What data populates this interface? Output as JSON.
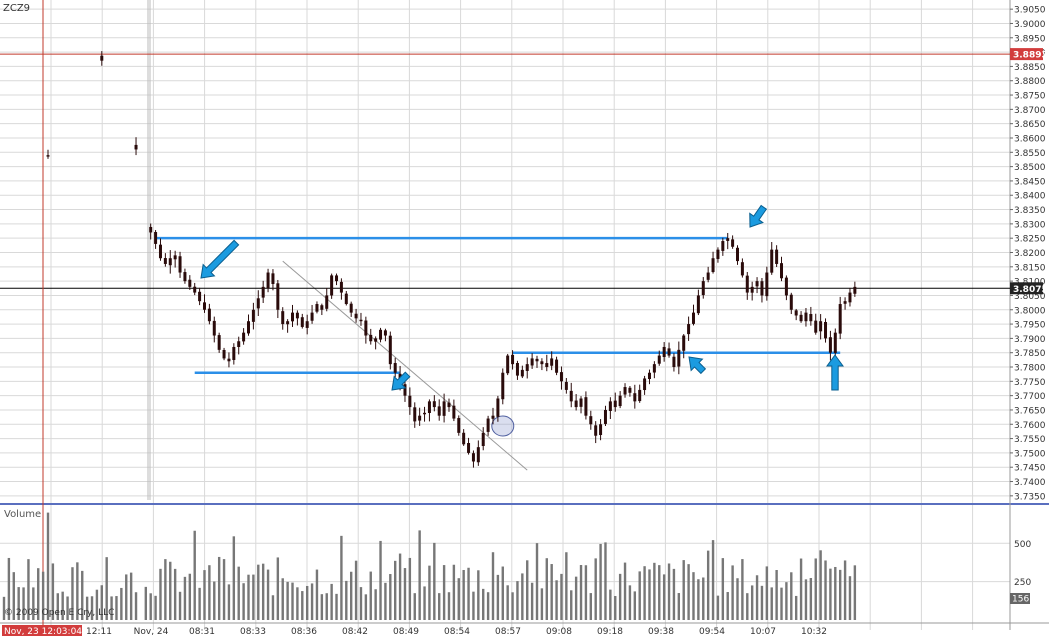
{
  "symbol": "ZCZ9",
  "volume_label": "Volume",
  "copyright": "© 2009 Open E Cry, LLC",
  "crosshair_time": "Nov, 23 12:03:04",
  "colors": {
    "grid": "#d9d9d9",
    "candle": "#2a0b0b",
    "level_line": "#2b8fe8",
    "arrow": "#1b9be0",
    "red_line": "#c0392b",
    "panel_divider": "#5a6fbf",
    "tag_red": "#d23c3c",
    "tag_gray": "#666666"
  },
  "chart_data": {
    "type": "candlestick",
    "title": "ZCZ9",
    "ylim": [
      3.7325,
      3.9075
    ],
    "yticks": [
      "3.9050",
      "3.9000",
      "3.8950",
      "3.8900",
      "3.8850",
      "3.8800",
      "3.8750",
      "3.8700",
      "3.8650",
      "3.8600",
      "3.8550",
      "3.8500",
      "3.8450",
      "3.8400",
      "3.8350",
      "3.8300",
      "3.8250",
      "3.8200",
      "3.8150",
      "3.8100",
      "3.8050",
      "3.8000",
      "3.7950",
      "3.7900",
      "3.7850",
      "3.7800",
      "3.7750",
      "3.7700",
      "3.7650",
      "3.7600",
      "3.7550",
      "3.7500",
      "3.7450",
      "3.7400",
      "3.7350"
    ],
    "xticks": [
      "12:11",
      "Nov, 24",
      "08:31",
      "08:33",
      "08:36",
      "08:42",
      "08:49",
      "08:54",
      "08:57",
      "09:08",
      "09:18",
      "09:38",
      "09:54",
      "10:07",
      "10:32"
    ],
    "current_price": "3.8075",
    "marked_price": "3.8893",
    "close_path": [
      [
        0,
        3.868
      ],
      [
        3,
        3.862
      ],
      [
        6,
        3.858
      ],
      [
        8,
        3.854
      ],
      [
        9,
        3.8535
      ],
      [
        11,
        3.862
      ],
      [
        14,
        3.874
      ],
      [
        17,
        3.884
      ],
      [
        19,
        3.889
      ],
      [
        20,
        3.887
      ],
      [
        22,
        3.876
      ],
      [
        24,
        3.868
      ],
      [
        26,
        3.858
      ],
      [
        27,
        3.856
      ],
      [
        29,
        3.829
      ],
      [
        30,
        3.827
      ],
      [
        31,
        3.823
      ],
      [
        32,
        3.818
      ],
      [
        33,
        3.816
      ],
      [
        34,
        3.818
      ],
      [
        35,
        3.819
      ],
      [
        36,
        3.813
      ],
      [
        37,
        3.81
      ],
      [
        38,
        3.808
      ],
      [
        39,
        3.806
      ],
      [
        40,
        3.803
      ],
      [
        41,
        3.8
      ],
      [
        42,
        3.796
      ],
      [
        43,
        3.791
      ],
      [
        44,
        3.786
      ],
      [
        45,
        3.783
      ],
      [
        46,
        3.782
      ],
      [
        47,
        3.787
      ],
      [
        48,
        3.789
      ],
      [
        49,
        3.792
      ],
      [
        50,
        3.796
      ],
      [
        51,
        3.8
      ],
      [
        52,
        3.804
      ],
      [
        53,
        3.808
      ],
      [
        54,
        3.813
      ],
      [
        55,
        3.809
      ],
      [
        56,
        3.8
      ],
      [
        57,
        3.795
      ],
      [
        58,
        3.796
      ],
      [
        59,
        3.799
      ],
      [
        60,
        3.797
      ],
      [
        61,
        3.794
      ],
      [
        62,
        3.796
      ],
      [
        63,
        3.799
      ],
      [
        64,
        3.802
      ],
      [
        65,
        3.8
      ],
      [
        66,
        3.805
      ],
      [
        67,
        3.812
      ],
      [
        68,
        3.81
      ],
      [
        69,
        3.806
      ],
      [
        70,
        3.802
      ],
      [
        71,
        3.799
      ],
      [
        72,
        3.797
      ],
      [
        73,
        3.796
      ],
      [
        74,
        3.791
      ],
      [
        75,
        3.789
      ],
      [
        76,
        3.79
      ],
      [
        77,
        3.793
      ],
      [
        78,
        3.791
      ],
      [
        79,
        3.781
      ],
      [
        80,
        3.778
      ],
      [
        81,
        3.774
      ],
      [
        82,
        3.77
      ],
      [
        83,
        3.766
      ],
      [
        84,
        3.761
      ],
      [
        85,
        3.763
      ],
      [
        86,
        3.764
      ],
      [
        87,
        3.768
      ],
      [
        88,
        3.766
      ],
      [
        89,
        3.763
      ],
      [
        90,
        3.768
      ],
      [
        91,
        3.766
      ],
      [
        92,
        3.762
      ],
      [
        93,
        3.757
      ],
      [
        94,
        3.753
      ],
      [
        95,
        3.75
      ],
      [
        96,
        3.747
      ],
      [
        97,
        3.752
      ],
      [
        98,
        3.757
      ],
      [
        99,
        3.762
      ],
      [
        100,
        3.763
      ],
      [
        101,
        3.769
      ],
      [
        102,
        3.778
      ],
      [
        103,
        3.784
      ],
      [
        104,
        3.781
      ],
      [
        105,
        3.777
      ],
      [
        106,
        3.779
      ],
      [
        107,
        3.781
      ],
      [
        108,
        3.783
      ],
      [
        109,
        3.782
      ],
      [
        110,
        3.781
      ],
      [
        111,
        3.78
      ],
      [
        112,
        3.783
      ],
      [
        113,
        3.778
      ],
      [
        114,
        3.775
      ],
      [
        115,
        3.772
      ],
      [
        116,
        3.768
      ],
      [
        117,
        3.766
      ],
      [
        118,
        3.769
      ],
      [
        119,
        3.763
      ],
      [
        120,
        3.76
      ],
      [
        121,
        3.756
      ],
      [
        122,
        3.76
      ],
      [
        123,
        3.765
      ],
      [
        124,
        3.768
      ],
      [
        125,
        3.766
      ],
      [
        126,
        3.77
      ],
      [
        127,
        3.773
      ],
      [
        128,
        3.771
      ],
      [
        129,
        3.768
      ],
      [
        130,
        3.772
      ],
      [
        131,
        3.776
      ],
      [
        132,
        3.778
      ],
      [
        133,
        3.781
      ],
      [
        134,
        3.784
      ],
      [
        135,
        3.787
      ],
      [
        136,
        3.784
      ],
      [
        137,
        3.78
      ],
      [
        138,
        3.786
      ],
      [
        139,
        3.791
      ],
      [
        140,
        3.795
      ],
      [
        141,
        3.799
      ],
      [
        142,
        3.805
      ],
      [
        143,
        3.81
      ],
      [
        144,
        3.813
      ],
      [
        145,
        3.818
      ],
      [
        146,
        3.821
      ],
      [
        147,
        3.824
      ],
      [
        148,
        3.825
      ],
      [
        149,
        3.822
      ],
      [
        150,
        3.817
      ],
      [
        151,
        3.812
      ],
      [
        152,
        3.806
      ],
      [
        153,
        3.808
      ],
      [
        154,
        3.81
      ],
      [
        155,
        3.805
      ],
      [
        156,
        3.813
      ],
      [
        157,
        3.821
      ],
      [
        158,
        3.816
      ],
      [
        159,
        3.811
      ],
      [
        160,
        3.805
      ],
      [
        161,
        3.8
      ],
      [
        162,
        3.798
      ],
      [
        163,
        3.796
      ],
      [
        164,
        3.799
      ],
      [
        165,
        3.796
      ],
      [
        166,
        3.792
      ],
      [
        167,
        3.796
      ],
      [
        168,
        3.79
      ],
      [
        169,
        3.785
      ],
      [
        170,
        3.792
      ],
      [
        171,
        3.802
      ],
      [
        172,
        3.803
      ],
      [
        173,
        3.806
      ],
      [
        174,
        3.808
      ]
    ],
    "levels": [
      {
        "price": 3.825,
        "from": 31,
        "to": 148
      },
      {
        "price": 3.778,
        "from": 39,
        "to": 81
      },
      {
        "price": 3.785,
        "from": 104,
        "to": 171
      }
    ],
    "trendline": [
      [
        57,
        3.817
      ],
      [
        107,
        3.744
      ]
    ],
    "volume_ticks": [
      "500",
      "250"
    ],
    "volume_current": "156",
    "volume_ylim": [
      0,
      730
    ]
  }
}
